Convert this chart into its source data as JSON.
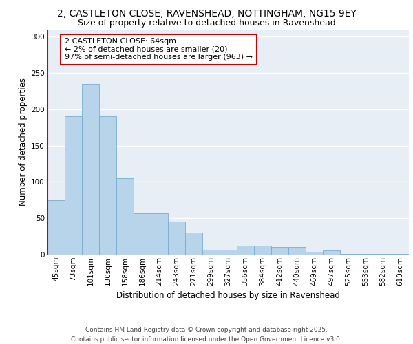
{
  "title_line1": "2, CASTLETON CLOSE, RAVENSHEAD, NOTTINGHAM, NG15 9EY",
  "title_line2": "Size of property relative to detached houses in Ravenshead",
  "xlabel": "Distribution of detached houses by size in Ravenshead",
  "ylabel": "Number of detached properties",
  "categories": [
    "45sqm",
    "73sqm",
    "101sqm",
    "130sqm",
    "158sqm",
    "186sqm",
    "214sqm",
    "243sqm",
    "271sqm",
    "299sqm",
    "327sqm",
    "356sqm",
    "384sqm",
    "412sqm",
    "440sqm",
    "469sqm",
    "497sqm",
    "525sqm",
    "553sqm",
    "582sqm",
    "610sqm"
  ],
  "values": [
    75,
    190,
    235,
    190,
    105,
    57,
    57,
    45,
    30,
    7,
    7,
    12,
    12,
    10,
    10,
    4,
    6,
    1,
    1,
    1,
    1
  ],
  "bar_color": "#b8d4ea",
  "bar_edge_color": "#7aadcf",
  "highlight_color": "#cc0000",
  "annotation_text": "2 CASTLETON CLOSE: 64sqm\n← 2% of detached houses are smaller (20)\n97% of semi-detached houses are larger (963) →",
  "annotation_box_color": "#ffffff",
  "annotation_box_edge_color": "#cc0000",
  "ylim": [
    0,
    310
  ],
  "yticks": [
    0,
    50,
    100,
    150,
    200,
    250,
    300
  ],
  "background_color": "#e8eef5",
  "footer_text": "Contains HM Land Registry data © Crown copyright and database right 2025.\nContains public sector information licensed under the Open Government Licence v3.0.",
  "grid_color": "#ffffff",
  "title_fontsize": 10,
  "subtitle_fontsize": 9,
  "tick_fontsize": 7.5,
  "label_fontsize": 8.5,
  "annotation_fontsize": 8,
  "footer_fontsize": 6.5
}
